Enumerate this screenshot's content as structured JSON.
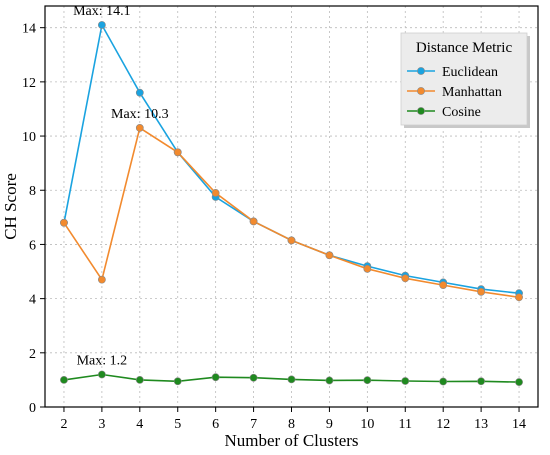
{
  "chart_data": {
    "type": "line",
    "xlabel": "Number of Clusters",
    "ylabel": "CH Score",
    "x": [
      2,
      3,
      4,
      5,
      6,
      7,
      8,
      9,
      10,
      11,
      12,
      13,
      14
    ],
    "xlim": [
      1.5,
      14.5
    ],
    "ylim": [
      0,
      14.8
    ],
    "yticks": [
      0,
      2,
      4,
      6,
      8,
      10,
      12,
      14
    ],
    "grid": true,
    "legend": {
      "title": "Distance Metric",
      "position": "top-right"
    },
    "series": [
      {
        "name": "Euclidean",
        "color": "#1aa3e0",
        "values": [
          6.8,
          14.1,
          11.6,
          9.4,
          7.75,
          6.85,
          6.15,
          5.6,
          5.2,
          4.85,
          4.6,
          4.35,
          4.2
        ]
      },
      {
        "name": "Manhattan",
        "color": "#f28a2e",
        "values": [
          6.8,
          4.7,
          10.3,
          9.4,
          7.9,
          6.85,
          6.15,
          5.6,
          5.1,
          4.75,
          4.5,
          4.25,
          4.05
        ]
      },
      {
        "name": "Cosine",
        "color": "#1f8a1f",
        "values": [
          1.0,
          1.2,
          1.0,
          0.95,
          1.1,
          1.08,
          1.02,
          0.98,
          0.99,
          0.96,
          0.94,
          0.95,
          0.92
        ]
      }
    ],
    "annotations": [
      {
        "text": "Max: 14.1",
        "x": 3,
        "y": 14.1
      },
      {
        "text": "Max: 10.3",
        "x": 4,
        "y": 10.3
      },
      {
        "text": "Max: 1.2",
        "x": 3,
        "y": 1.2
      }
    ]
  }
}
